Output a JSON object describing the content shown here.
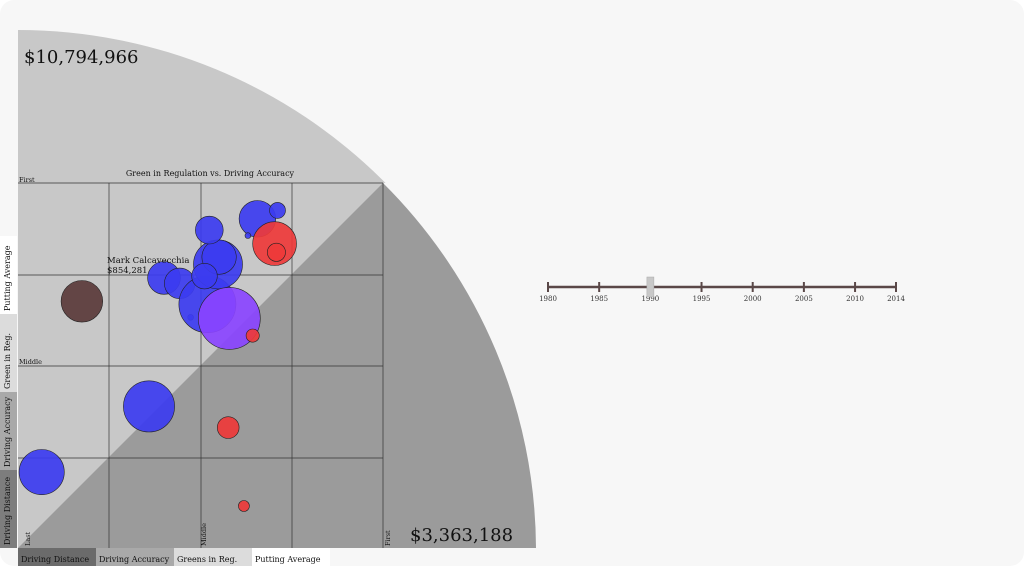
{
  "prize_money": {
    "top": "$10,794,966",
    "bottom": "$3,363,188"
  },
  "chart_data": {
    "type": "scatter",
    "title": "Green in Regulation vs. Driving Accuracy",
    "tick_labels": {
      "y_top": "First",
      "y_mid": "Middle",
      "x_low": "Last",
      "x_mid": "Middle",
      "x_high": "First"
    },
    "grid": true,
    "x_range": [
      0,
      1
    ],
    "y_range": [
      0,
      1
    ],
    "colors": {
      "blue": "#3c3cf0",
      "red": "#ee3a3a",
      "purple": "#8a44ff",
      "brown": "#5a3a3a"
    },
    "points": [
      {
        "x": 0.656,
        "y": 0.902,
        "r": 0.05,
        "color": "blue"
      },
      {
        "x": 0.711,
        "y": 0.925,
        "r": 0.022,
        "color": "blue"
      },
      {
        "x": 0.703,
        "y": 0.834,
        "r": 0.06,
        "color": "red"
      },
      {
        "x": 0.708,
        "y": 0.81,
        "r": 0.025,
        "color": "red"
      },
      {
        "x": 0.4,
        "y": 0.74,
        "r": 0.045,
        "color": "blue"
      },
      {
        "x": 0.443,
        "y": 0.725,
        "r": 0.042,
        "color": "blue"
      },
      {
        "x": 0.473,
        "y": 0.632,
        "r": 0.008,
        "color": "blue"
      },
      {
        "x": 0.519,
        "y": 0.668,
        "r": 0.078,
        "color": "blue"
      },
      {
        "x": 0.548,
        "y": 0.777,
        "r": 0.067,
        "color": "blue"
      },
      {
        "x": 0.551,
        "y": 0.797,
        "r": 0.047,
        "color": "blue"
      },
      {
        "x": 0.524,
        "y": 0.871,
        "r": 0.038,
        "color": "blue"
      },
      {
        "x": 0.511,
        "y": 0.745,
        "r": 0.035,
        "color": "blue"
      },
      {
        "x": 0.579,
        "y": 0.629,
        "r": 0.085,
        "color": "purple"
      },
      {
        "x": 0.643,
        "y": 0.582,
        "r": 0.018,
        "color": "red"
      },
      {
        "x": 0.63,
        "y": 0.856,
        "r": 0.008,
        "color": "blue"
      },
      {
        "x": 0.175,
        "y": 0.676,
        "r": 0.057,
        "color": "brown"
      },
      {
        "x": 0.359,
        "y": 0.388,
        "r": 0.07,
        "color": "blue"
      },
      {
        "x": 0.576,
        "y": 0.33,
        "r": 0.03,
        "color": "red"
      },
      {
        "x": 0.065,
        "y": 0.208,
        "r": 0.062,
        "color": "blue"
      },
      {
        "x": 0.619,
        "y": 0.115,
        "r": 0.015,
        "color": "red"
      }
    ],
    "highlight": {
      "name": "Mark Calcavecchia",
      "value": "$854,281",
      "x": 0.175,
      "y": 0.676
    }
  },
  "bottom_tabs": [
    "Driving Distance",
    "Driving Accuracy",
    "Greens in Reg.",
    "Putting Average"
  ],
  "side_tabs": [
    "Driving Distance",
    "Driving Accuracy",
    "Green in Reg.",
    "Putting Average"
  ],
  "timeline": {
    "years": [
      "1980",
      "1985",
      "1990",
      "1995",
      "2000",
      "2005",
      "2010",
      "2014"
    ],
    "handle_year": 1990
  }
}
